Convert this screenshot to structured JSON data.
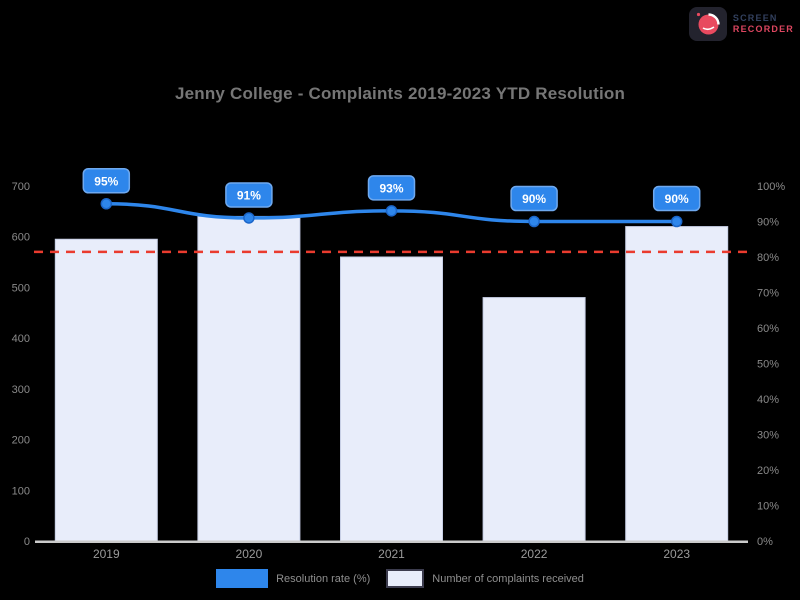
{
  "title": "Jenny College - Complaints 2019-2023 YTD Resolution",
  "logo": {
    "line1": "SCREEN",
    "line2": "RECORDER"
  },
  "colors": {
    "background": "#000000",
    "accent": "#2e86eb",
    "badge_border": "#6fa9ef",
    "badge_text": "#ffffff",
    "bar_fill": "#e8edfa",
    "bar_border": "#c7cfe5",
    "target": "#ea3b2e",
    "title_text": "#767676",
    "axis_text": "#8a8a8a",
    "category_text": "#9a9a9a",
    "axis_line": "#cbcbcb",
    "marker_ring": "#1c66c9",
    "logo_pink": "#e84a5f",
    "logo_navy": "#33415f",
    "logo_tile": "#23232e"
  },
  "chart_data": {
    "type": "combo (bar + line)",
    "title": "Jenny College - Complaints 2019-2023 YTD Resolution",
    "categories": [
      "2019",
      "2020",
      "2021",
      "2022",
      "2023"
    ],
    "series": [
      {
        "name": "Resolution rate (%)",
        "chart_type": "line",
        "axis": "right",
        "color": "#2e86eb",
        "values": [
          95,
          91,
          93,
          90,
          90
        ],
        "point_labels": [
          "95%",
          "91%",
          "93%",
          "90%",
          "90%"
        ]
      },
      {
        "name": "Number of complaints received",
        "chart_type": "bar",
        "axis": "left",
        "color": "#e8edfa",
        "border_color": "#c7cfe5",
        "values": [
          595,
          640,
          560,
          480,
          620
        ]
      }
    ],
    "target_line": {
      "value": 570,
      "axis": "left",
      "color": "#ea3b2e",
      "style": "dashed"
    },
    "axes": {
      "left": {
        "min": 0,
        "max": 700,
        "ticks": [
          "700",
          "600",
          "500",
          "400",
          "300",
          "200",
          "100",
          "0"
        ]
      },
      "right": {
        "min": 0,
        "max": 100,
        "ticks": [
          "100%",
          "90%",
          "80%",
          "70%",
          "60%",
          "50%",
          "40%",
          "30%",
          "20%",
          "10%",
          "0%"
        ]
      }
    },
    "legend_position": "bottom",
    "grid": false,
    "background": "#000000"
  }
}
